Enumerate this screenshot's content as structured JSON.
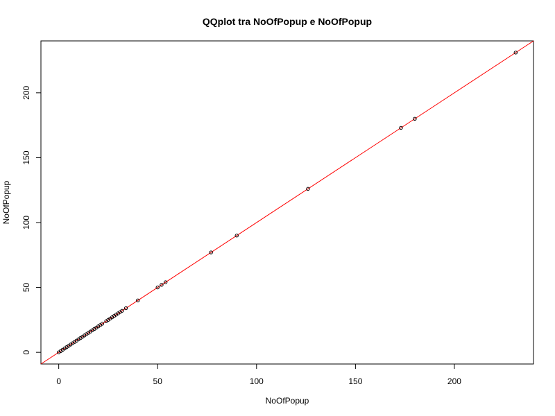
{
  "chart_data": {
    "type": "scatter",
    "title": "QQplot tra NoOfPopup e NoOfPopup",
    "xlabel": "NoOfPopup",
    "ylabel": "NoOfPopup",
    "xlim": [
      -9,
      240
    ],
    "ylim": [
      -9,
      240
    ],
    "xticks": [
      0,
      50,
      100,
      150,
      200
    ],
    "yticks": [
      0,
      50,
      100,
      150,
      200
    ],
    "grid": false,
    "reference_line": {
      "type": "y=x",
      "color": "#ff0000"
    },
    "point_color": "#000000",
    "x": [
      0,
      1,
      2,
      3,
      4,
      5,
      6,
      7,
      8,
      9,
      10,
      11,
      12,
      13,
      14,
      15,
      16,
      17,
      18,
      19,
      20,
      21,
      22,
      24,
      25,
      26,
      27,
      28,
      29,
      30,
      31,
      32,
      34,
      40,
      50,
      52,
      54,
      77,
      90,
      126,
      173,
      180,
      231
    ],
    "y": [
      0,
      1,
      2,
      3,
      4,
      5,
      6,
      7,
      8,
      9,
      10,
      11,
      12,
      13,
      14,
      15,
      16,
      17,
      18,
      19,
      20,
      21,
      22,
      24,
      25,
      26,
      27,
      28,
      29,
      30,
      31,
      32,
      34,
      40,
      50,
      52,
      54,
      77,
      90,
      126,
      173,
      180,
      231
    ]
  }
}
